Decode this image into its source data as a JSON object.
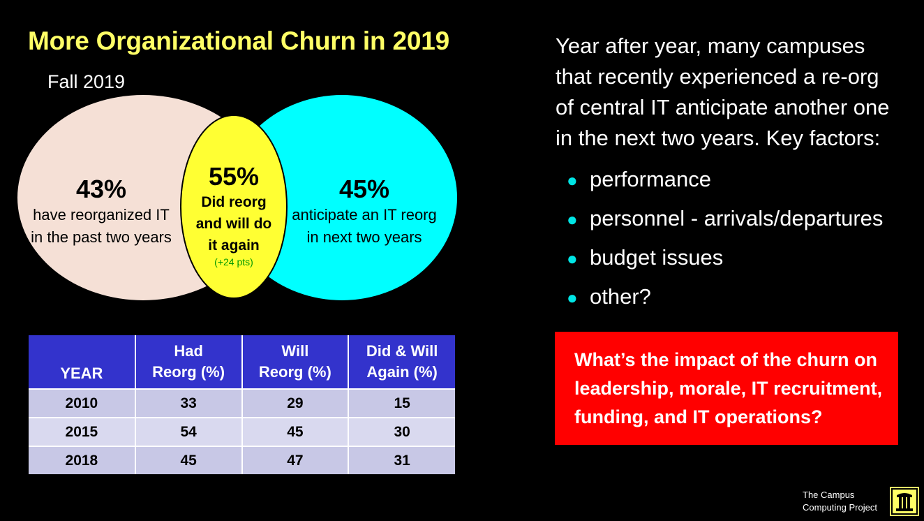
{
  "slide": {
    "title": "More Organizational Churn in 2019",
    "subtitle": "Fall 2019"
  },
  "venn": {
    "left": {
      "pct": "43%",
      "line1": "have reorganized IT",
      "line2": "in the past two years",
      "color": "#f5e0d6"
    },
    "middle": {
      "pct": "55%",
      "line1": "Did reorg",
      "line2": "and will do",
      "line3": "it again",
      "note": "(+24 pts)",
      "color": "#ffff33"
    },
    "right": {
      "pct": "45%",
      "line1": "anticipate an IT reorg",
      "line2": "in next two years",
      "color": "#00ffff"
    }
  },
  "table": {
    "headers": [
      {
        "line1": "YEAR",
        "line2": ""
      },
      {
        "line1": "Had",
        "line2": "Reorg (%)"
      },
      {
        "line1": "Will",
        "line2": "Reorg (%)"
      },
      {
        "line1": "Did & Will",
        "line2": "Again (%)"
      }
    ],
    "rows": [
      [
        "2010",
        "33",
        "29",
        "15"
      ],
      [
        "2015",
        "54",
        "45",
        "30"
      ],
      [
        "2018",
        "45",
        "47",
        "31"
      ]
    ]
  },
  "right": {
    "para_lines": [
      "Year after year, many campuses",
      "that recently experienced a re-org",
      "of central IT anticipate another one",
      "in the next two years.  Key factors:"
    ],
    "bullets": [
      "performance",
      "personnel - arrivals/departures",
      "budget issues",
      "other?"
    ],
    "bullet_color": "#00e5e5",
    "question_lines": [
      "What’s the impact of the churn on",
      "leadership, morale, IT recruitment,",
      "funding, and IT operations?"
    ],
    "question_bg": "#ff0000"
  },
  "footer": {
    "line1": "The Campus",
    "line2": "Computing Project"
  }
}
